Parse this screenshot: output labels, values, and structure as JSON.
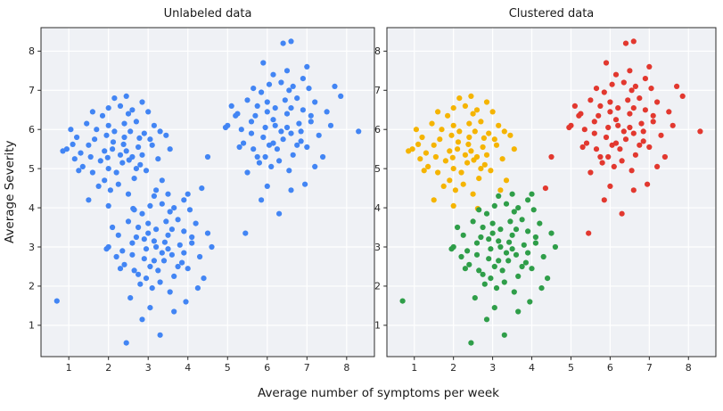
{
  "figure": {
    "xlabel": "Average number of symptoms per week",
    "ylabel": "Average Severity",
    "background": "#ffffff",
    "panel_background": "#eff1f5",
    "grid_color": "#ffffff",
    "spine_color": "#2b2b2b",
    "tick_color": "#262626"
  },
  "chart_data": [
    {
      "type": "scatter",
      "title": "Unlabeled data",
      "xlim": [
        0.3,
        8.7
      ],
      "ylim": [
        0.2,
        8.6
      ],
      "xticks": [
        1,
        2,
        3,
        4,
        5,
        6,
        7,
        8
      ],
      "yticks": [
        1,
        2,
        3,
        4,
        5,
        6,
        7,
        8
      ],
      "grid": true,
      "legend": "none",
      "series": [
        {
          "name": "unlabeled",
          "color": "#4285f4",
          "points_union_of_chart": 1
        }
      ]
    },
    {
      "type": "scatter",
      "title": "Clustered data",
      "xlim": [
        0.3,
        8.7
      ],
      "ylim": [
        0.2,
        8.6
      ],
      "xticks": [
        1,
        2,
        3,
        4,
        5,
        6,
        7,
        8
      ],
      "yticks": [
        1,
        2,
        3,
        4,
        5,
        6,
        7,
        8
      ],
      "grid": true,
      "legend": "none",
      "series": [
        {
          "name": "cluster-yellow",
          "color": "#f5b400",
          "points": [
            [
              2.1,
              5.5
            ],
            [
              1.8,
              5.2
            ],
            [
              2.4,
              5.8
            ],
            [
              2.0,
              6.1
            ],
            [
              2.6,
              5.3
            ],
            [
              1.5,
              5.6
            ],
            [
              2.9,
              5.9
            ],
            [
              2.2,
              4.9
            ],
            [
              1.7,
              6.0
            ],
            [
              2.5,
              6.4
            ],
            [
              1.9,
              4.7
            ],
            [
              2.8,
              5.1
            ],
            [
              1.3,
              5.4
            ],
            [
              2.3,
              6.6
            ],
            [
              2.7,
              6.2
            ],
            [
              1.6,
              4.9
            ],
            [
              3.1,
              5.6
            ],
            [
              2.0,
              5.0
            ],
            [
              1.2,
              5.8
            ],
            [
              2.45,
              5.45
            ],
            [
              1.85,
              6.35
            ],
            [
              2.15,
              6.8
            ],
            [
              2.65,
              4.75
            ],
            [
              1.45,
              6.15
            ],
            [
              3.0,
              6.45
            ],
            [
              0.95,
              5.5
            ],
            [
              2.35,
              5.15
            ],
            [
              1.65,
              5.75
            ],
            [
              2.85,
              6.7
            ],
            [
              2.05,
              4.45
            ],
            [
              1.25,
              4.95
            ],
            [
              2.55,
              5.95
            ],
            [
              3.25,
              5.25
            ],
            [
              1.05,
              6.0
            ],
            [
              2.75,
              5.55
            ],
            [
              1.95,
              5.85
            ],
            [
              2.25,
              4.6
            ],
            [
              3.45,
              5.85
            ],
            [
              1.55,
              5.3
            ],
            [
              2.95,
              4.95
            ],
            [
              2.4,
              6.15
            ],
            [
              1.75,
              4.55
            ],
            [
              3.15,
              6.1
            ],
            [
              2.12,
              5.68
            ],
            [
              1.35,
              5.05
            ],
            [
              2.6,
              6.5
            ],
            [
              3.35,
              4.7
            ],
            [
              0.85,
              5.45
            ],
            [
              2.0,
              6.55
            ],
            [
              2.5,
              4.35
            ],
            [
              1.9,
              5.45
            ],
            [
              3.05,
              5.75
            ],
            [
              2.3,
              5.35
            ],
            [
              1.6,
              6.45
            ],
            [
              2.7,
              5.0
            ],
            [
              2.15,
              5.95
            ],
            [
              3.55,
              5.5
            ],
            [
              1.15,
              5.25
            ],
            [
              2.85,
              5.35
            ],
            [
              2.45,
              6.85
            ],
            [
              1.5,
              4.2
            ],
            [
              2.0,
              4.05
            ],
            [
              3.2,
              4.45
            ],
            [
              2.62,
              3.98
            ],
            [
              1.1,
              5.62
            ],
            [
              2.38,
              5.62
            ],
            [
              1.98,
              5.28
            ],
            [
              2.78,
              5.78
            ],
            [
              3.3,
              5.95
            ],
            [
              2.52,
              5.22
            ]
          ]
        },
        {
          "name": "cluster-green",
          "color": "#2f9e49",
          "points": [
            [
              3.2,
              3.0
            ],
            [
              2.9,
              2.7
            ],
            [
              3.5,
              3.3
            ],
            [
              3.0,
              3.6
            ],
            [
              3.6,
              2.8
            ],
            [
              2.6,
              3.1
            ],
            [
              3.9,
              3.4
            ],
            [
              3.25,
              2.4
            ],
            [
              2.75,
              3.5
            ],
            [
              3.55,
              3.9
            ],
            [
              2.95,
              2.2
            ],
            [
              3.85,
              2.6
            ],
            [
              2.35,
              2.9
            ],
            [
              3.35,
              4.1
            ],
            [
              3.75,
              3.7
            ],
            [
              2.65,
              2.4
            ],
            [
              4.1,
              3.1
            ],
            [
              3.05,
              2.5
            ],
            [
              2.25,
              3.3
            ],
            [
              3.5,
              2.95
            ],
            [
              2.85,
              3.85
            ],
            [
              3.15,
              4.3
            ],
            [
              3.65,
              2.25
            ],
            [
              2.5,
              3.65
            ],
            [
              4.05,
              3.95
            ],
            [
              2.0,
              3.0
            ],
            [
              3.4,
              2.65
            ],
            [
              2.7,
              3.25
            ],
            [
              3.9,
              4.2
            ],
            [
              3.1,
              1.95
            ],
            [
              2.3,
              2.45
            ],
            [
              3.6,
              3.45
            ],
            [
              4.3,
              2.75
            ],
            [
              2.1,
              3.5
            ],
            [
              3.8,
              3.05
            ],
            [
              3.0,
              3.35
            ],
            [
              3.3,
              2.1
            ],
            [
              4.5,
              3.35
            ],
            [
              2.6,
              2.8
            ],
            [
              4.0,
              2.45
            ],
            [
              3.45,
              3.65
            ],
            [
              2.8,
              2.05
            ],
            [
              4.2,
              3.6
            ],
            [
              3.15,
              3.15
            ],
            [
              2.4,
              2.55
            ],
            [
              3.65,
              4.0
            ],
            [
              4.4,
              2.2
            ],
            [
              1.95,
              2.95
            ],
            [
              3.05,
              4.05
            ],
            [
              3.55,
              1.85
            ],
            [
              2.95,
              2.95
            ],
            [
              4.1,
              3.25
            ],
            [
              3.35,
              2.85
            ],
            [
              2.65,
              3.95
            ],
            [
              3.75,
              2.5
            ],
            [
              3.2,
              3.45
            ],
            [
              4.6,
              3.0
            ],
            [
              2.2,
              2.75
            ],
            [
              3.9,
              2.85
            ],
            [
              3.5,
              4.35
            ],
            [
              2.55,
              1.7
            ],
            [
              3.05,
              1.45
            ],
            [
              4.25,
              1.95
            ],
            [
              3.65,
              1.35
            ],
            [
              2.85,
              1.15
            ],
            [
              3.3,
              0.75
            ],
            [
              2.45,
              0.55
            ],
            [
              3.95,
              1.6
            ],
            [
              2.75,
              2.3
            ],
            [
              3.15,
              2.65
            ],
            [
              0.7,
              1.62
            ],
            [
              4.0,
              4.35
            ],
            [
              2.9,
              3.2
            ],
            [
              3.42,
              3.12
            ]
          ]
        },
        {
          "name": "cluster-red",
          "color": "#e2382f",
          "points": [
            [
              6.2,
              6.1
            ],
            [
              5.9,
              5.8
            ],
            [
              6.5,
              6.4
            ],
            [
              6.0,
              6.7
            ],
            [
              6.6,
              5.9
            ],
            [
              5.6,
              6.2
            ],
            [
              6.9,
              6.5
            ],
            [
              6.25,
              5.5
            ],
            [
              5.75,
              6.6
            ],
            [
              6.55,
              7.0
            ],
            [
              5.95,
              5.3
            ],
            [
              6.85,
              5.7
            ],
            [
              5.35,
              6.0
            ],
            [
              6.35,
              7.2
            ],
            [
              6.75,
              6.8
            ],
            [
              5.65,
              5.5
            ],
            [
              7.1,
              6.2
            ],
            [
              6.05,
              5.6
            ],
            [
              5.25,
              6.4
            ],
            [
              6.5,
              6.05
            ],
            [
              5.85,
              6.95
            ],
            [
              6.15,
              7.4
            ],
            [
              6.65,
              5.35
            ],
            [
              5.5,
              6.75
            ],
            [
              7.05,
              7.05
            ],
            [
              5.0,
              6.1
            ],
            [
              6.4,
              5.75
            ],
            [
              5.7,
              6.35
            ],
            [
              6.9,
              7.3
            ],
            [
              6.1,
              5.05
            ],
            [
              5.3,
              5.55
            ],
            [
              6.6,
              6.55
            ],
            [
              7.3,
              5.85
            ],
            [
              5.1,
              6.6
            ],
            [
              6.8,
              6.15
            ],
            [
              6.0,
              6.45
            ],
            [
              6.3,
              5.2
            ],
            [
              7.5,
              6.45
            ],
            [
              5.6,
              5.9
            ],
            [
              7.0,
              5.55
            ],
            [
              6.45,
              6.75
            ],
            [
              5.8,
              5.15
            ],
            [
              7.2,
              6.7
            ],
            [
              6.15,
              6.25
            ],
            [
              5.4,
              5.65
            ],
            [
              6.65,
              7.1
            ],
            [
              7.4,
              5.3
            ],
            [
              4.95,
              6.05
            ],
            [
              6.05,
              7.15
            ],
            [
              6.55,
              4.95
            ],
            [
              5.95,
              6.05
            ],
            [
              7.1,
              6.35
            ],
            [
              6.35,
              5.95
            ],
            [
              5.65,
              7.05
            ],
            [
              6.75,
              5.6
            ],
            [
              6.2,
              6.55
            ],
            [
              7.6,
              6.1
            ],
            [
              5.2,
              6.35
            ],
            [
              6.85,
              5.95
            ],
            [
              6.5,
              7.5
            ],
            [
              5.5,
              4.9
            ],
            [
              6.0,
              4.55
            ],
            [
              7.2,
              5.05
            ],
            [
              6.6,
              4.45
            ],
            [
              5.85,
              4.2
            ],
            [
              6.3,
              3.85
            ],
            [
              5.45,
              3.35
            ],
            [
              6.95,
              4.6
            ],
            [
              5.75,
              5.3
            ],
            [
              6.15,
              5.65
            ],
            [
              8.3,
              5.95
            ],
            [
              6.4,
              8.2
            ],
            [
              6.6,
              8.25
            ],
            [
              5.9,
              7.7
            ],
            [
              7.0,
              7.6
            ],
            [
              4.5,
              5.3
            ],
            [
              4.35,
              4.5
            ],
            [
              7.85,
              6.85
            ],
            [
              7.7,
              7.1
            ]
          ]
        }
      ]
    }
  ]
}
